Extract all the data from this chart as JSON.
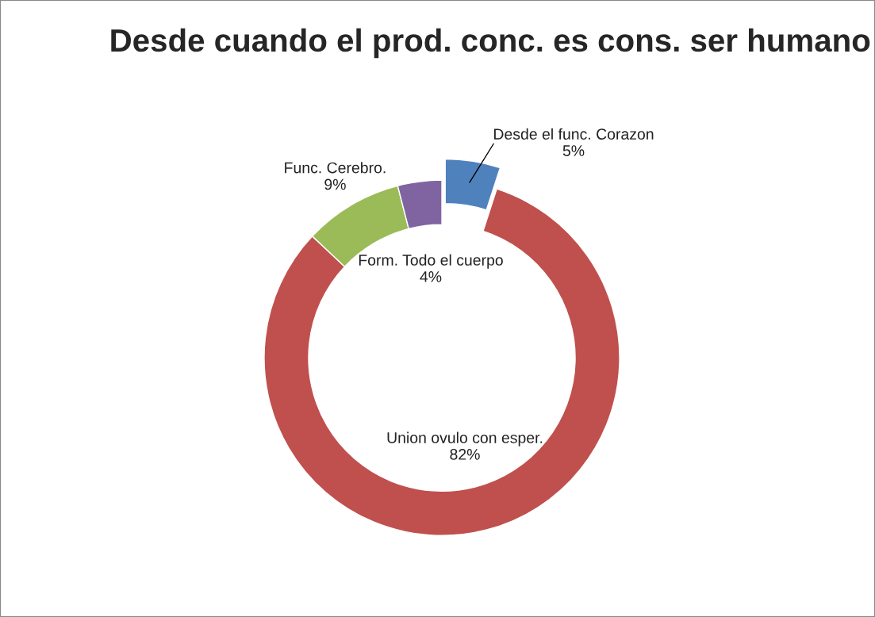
{
  "chart_data": {
    "type": "donut",
    "title": "Desde cuando el prod. conc. es cons. ser humano",
    "categories": [
      "Desde el func. Corazon",
      "Union ovulo con esper.",
      "Func. Cerebro.",
      "Form. Todo el cuerpo"
    ],
    "values": [
      5,
      82,
      9,
      4
    ],
    "colors": [
      "#4f81bd",
      "#c0504d",
      "#9bbb59",
      "#8064a2"
    ],
    "value_labels": [
      "5%",
      "82%",
      "9%",
      "4%"
    ],
    "legend": false
  }
}
